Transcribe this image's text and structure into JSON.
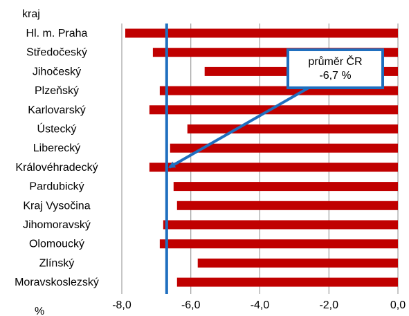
{
  "chart_data": {
    "type": "bar",
    "orientation": "horizontal",
    "title": "",
    "category_axis_label": "kraj",
    "value_axis_unit": "%",
    "categories": [
      "Hl. m. Praha",
      "Středočeský",
      "Jihočeský",
      "Plzeňský",
      "Karlovarský",
      "Ústecký",
      "Liberecký",
      "Královéhradecký",
      "Pardubický",
      "Kraj Vysočina",
      "Jihomoravský",
      "Olomoucký",
      "Zlínský",
      "Moravskoslezský"
    ],
    "values": [
      -7.9,
      -7.1,
      -5.6,
      -6.9,
      -7.2,
      -6.1,
      -6.6,
      -7.2,
      -6.5,
      -6.4,
      -6.8,
      -6.9,
      -5.8,
      -6.4
    ],
    "xlim": [
      -8.0,
      0.0
    ],
    "ticks": [
      "-8,0",
      "-6,0",
      "-4,0",
      "-2,0",
      "0,0"
    ],
    "tick_values": [
      -8,
      -6,
      -4,
      -2,
      0
    ],
    "grid": true,
    "bar_color": "#c00000",
    "reference_line": {
      "value": -6.7,
      "color": "#1f6fbf",
      "label_lines": [
        "průměr ČR",
        "-6,7 %"
      ],
      "arrow_target_category": "Královéhradecký"
    }
  }
}
